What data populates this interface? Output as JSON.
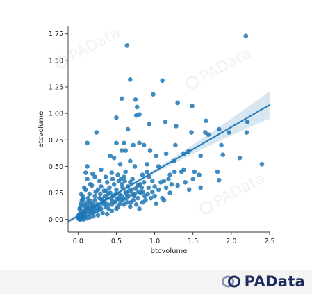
{
  "chart_data": {
    "type": "scatter",
    "xlabel": "btcvolume",
    "ylabel": "etcvolume",
    "xlim": [
      -0.13,
      2.5
    ],
    "ylim": [
      -0.12,
      1.82
    ],
    "xticks": [
      "0.0",
      "0.5",
      "1.0",
      "1.5",
      "2.0",
      "2.5"
    ],
    "yticks": [
      "0.00",
      "0.25",
      "0.50",
      "0.75",
      "1.00",
      "1.25",
      "1.50",
      "1.75"
    ],
    "grid": false,
    "legend": "none",
    "point_color": "#1f77b4",
    "regression": {
      "x": [
        -0.13,
        2.5
      ],
      "y": [
        -0.02,
        1.08
      ],
      "ci_color": "#1f77b4"
    },
    "points": [
      [
        2.19,
        1.73
      ],
      [
        0.64,
        1.64
      ],
      [
        0.68,
        1.32
      ],
      [
        1.1,
        1.31
      ],
      [
        0.57,
        1.14
      ],
      [
        0.98,
        1.18
      ],
      [
        0.75,
        1.13
      ],
      [
        1.3,
        1.1
      ],
      [
        1.49,
        1.07
      ],
      [
        0.77,
        1.06
      ],
      [
        0.8,
        0.99
      ],
      [
        0.76,
        0.98
      ],
      [
        0.5,
        0.96
      ],
      [
        0.65,
        0.85
      ],
      [
        0.93,
        0.9
      ],
      [
        1.14,
        0.92
      ],
      [
        1.28,
        0.88
      ],
      [
        1.48,
        0.82
      ],
      [
        1.67,
        0.93
      ],
      [
        1.66,
        0.82
      ],
      [
        1.7,
        0.8
      ],
      [
        1.84,
        0.85
      ],
      [
        1.97,
        0.82
      ],
      [
        2.21,
        0.92
      ],
      [
        2.2,
        0.82
      ],
      [
        0.12,
        0.72
      ],
      [
        0.24,
        0.82
      ],
      [
        0.5,
        0.72
      ],
      [
        0.57,
        0.65
      ],
      [
        0.6,
        0.72
      ],
      [
        0.62,
        0.65
      ],
      [
        0.72,
        0.7
      ],
      [
        0.8,
        0.72
      ],
      [
        0.86,
        0.7
      ],
      [
        0.94,
        0.65
      ],
      [
        1.02,
        0.6
      ],
      [
        1.15,
        0.62
      ],
      [
        1.27,
        0.7
      ],
      [
        1.38,
        0.62
      ],
      [
        1.44,
        0.64
      ],
      [
        1.6,
        0.6
      ],
      [
        1.87,
        0.7
      ],
      [
        1.89,
        0.61
      ],
      [
        2.11,
        0.58
      ],
      [
        2.4,
        0.52
      ],
      [
        1.82,
        0.45
      ],
      [
        1.84,
        0.37
      ],
      [
        1.58,
        0.42
      ],
      [
        1.52,
        0.45
      ],
      [
        1.38,
        0.47
      ],
      [
        1.25,
        0.55
      ],
      [
        0.1,
        0.44
      ],
      [
        0.12,
        0.5
      ],
      [
        0.19,
        0.43
      ],
      [
        0.3,
        0.47
      ],
      [
        0.42,
        0.6
      ],
      [
        0.47,
        0.58
      ],
      [
        0.55,
        0.52
      ],
      [
        0.68,
        0.55
      ],
      [
        0.74,
        0.5
      ],
      [
        0.9,
        0.52
      ],
      [
        1.05,
        0.5
      ],
      [
        1.2,
        0.42
      ],
      [
        1.26,
        0.45
      ],
      [
        1.4,
        0.35
      ],
      [
        1.5,
        0.38
      ],
      [
        1.6,
        0.3
      ],
      [
        1.45,
        0.28
      ],
      [
        1.3,
        0.32
      ],
      [
        1.2,
        0.25
      ],
      [
        1.1,
        0.2
      ],
      [
        1.0,
        0.22
      ],
      [
        0.92,
        0.3
      ],
      [
        0.85,
        0.26
      ],
      [
        0.78,
        0.32
      ],
      [
        0.68,
        0.35
      ],
      [
        0.6,
        0.4
      ],
      [
        0.52,
        0.42
      ],
      [
        0.45,
        0.38
      ],
      [
        0.38,
        0.35
      ],
      [
        0.3,
        0.31
      ],
      [
        0.23,
        0.26
      ],
      [
        0.18,
        0.32
      ],
      [
        0.15,
        0.24
      ],
      [
        0.1,
        0.28
      ],
      [
        0.06,
        0.22
      ],
      [
        0.05,
        0.18
      ],
      [
        0.08,
        0.14
      ],
      [
        0.12,
        0.16
      ],
      [
        0.03,
        0.12
      ],
      [
        0.04,
        0.08
      ],
      [
        0.02,
        0.05
      ],
      [
        0.01,
        0.02
      ],
      [
        0.03,
        0.03
      ],
      [
        0.06,
        0.06
      ],
      [
        0.08,
        0.04
      ],
      [
        0.1,
        0.08
      ],
      [
        0.14,
        0.1
      ],
      [
        0.16,
        0.13
      ],
      [
        0.2,
        0.12
      ],
      [
        0.22,
        0.18
      ],
      [
        0.25,
        0.14
      ],
      [
        0.28,
        0.2
      ],
      [
        0.32,
        0.17
      ],
      [
        0.35,
        0.22
      ],
      [
        0.38,
        0.2
      ],
      [
        0.42,
        0.25
      ],
      [
        0.46,
        0.22
      ],
      [
        0.5,
        0.28
      ],
      [
        0.54,
        0.24
      ],
      [
        0.58,
        0.3
      ],
      [
        0.62,
        0.26
      ],
      [
        0.66,
        0.22
      ],
      [
        0.7,
        0.28
      ],
      [
        0.74,
        0.24
      ],
      [
        0.78,
        0.2
      ],
      [
        0.82,
        0.25
      ],
      [
        0.88,
        0.18
      ],
      [
        0.95,
        0.2
      ],
      [
        1.02,
        0.15
      ],
      [
        1.12,
        0.18
      ],
      [
        0.18,
        0.06
      ],
      [
        0.24,
        0.08
      ],
      [
        0.3,
        0.1
      ],
      [
        0.36,
        0.12
      ],
      [
        0.4,
        0.1
      ],
      [
        0.44,
        0.14
      ],
      [
        0.48,
        0.16
      ],
      [
        0.52,
        0.12
      ],
      [
        0.56,
        0.18
      ],
      [
        0.6,
        0.14
      ],
      [
        0.64,
        0.16
      ],
      [
        0.68,
        0.12
      ],
      [
        0.72,
        0.18
      ],
      [
        0.76,
        0.14
      ],
      [
        0.8,
        0.1
      ],
      [
        0.84,
        0.16
      ],
      [
        0.15,
        0.02
      ],
      [
        0.2,
        0.03
      ],
      [
        0.26,
        0.04
      ],
      [
        0.32,
        0.06
      ],
      [
        0.38,
        0.05
      ],
      [
        0.44,
        0.08
      ],
      [
        0.5,
        0.1
      ],
      [
        0.11,
        0.01
      ],
      [
        0.07,
        0.0
      ],
      [
        0.05,
        0.01
      ],
      [
        0.09,
        0.03
      ],
      [
        0.13,
        0.05
      ],
      [
        0.17,
        0.09
      ],
      [
        0.21,
        0.07
      ],
      [
        0.27,
        0.09
      ],
      [
        0.33,
        0.15
      ],
      [
        0.37,
        0.27
      ],
      [
        0.41,
        0.3
      ],
      [
        0.47,
        0.33
      ],
      [
        0.53,
        0.36
      ],
      [
        0.57,
        0.33
      ],
      [
        0.61,
        0.36
      ],
      [
        0.65,
        0.31
      ],
      [
        0.71,
        0.38
      ],
      [
        0.02,
        0.1
      ],
      [
        0.04,
        0.15
      ],
      [
        0.07,
        0.19
      ],
      [
        0.09,
        0.11
      ],
      [
        0.11,
        0.13
      ],
      [
        0.13,
        0.2
      ],
      [
        0.16,
        0.17
      ],
      [
        0.19,
        0.15
      ],
      [
        0.22,
        0.22
      ],
      [
        0.26,
        0.28
      ],
      [
        0.29,
        0.24
      ],
      [
        0.34,
        0.27
      ],
      [
        0.39,
        0.24
      ],
      [
        0.43,
        0.2
      ],
      [
        0.49,
        0.24
      ],
      [
        0.53,
        0.2
      ],
      [
        0.57,
        0.22
      ],
      [
        0.63,
        0.2
      ],
      [
        0.69,
        0.16
      ],
      [
        0.73,
        0.22
      ],
      [
        0.79,
        0.26
      ],
      [
        0.83,
        0.3
      ],
      [
        0.87,
        0.22
      ],
      [
        0.91,
        0.24
      ],
      [
        0.97,
        0.26
      ],
      [
        1.05,
        0.28
      ],
      [
        1.08,
        0.35
      ],
      [
        1.15,
        0.3
      ],
      [
        1.18,
        0.38
      ],
      [
        1.22,
        0.33
      ],
      [
        0.02,
        0.0
      ],
      [
        0.0,
        0.01
      ],
      [
        0.03,
        0.0
      ],
      [
        0.06,
        0.02
      ],
      [
        0.01,
        0.04
      ],
      [
        0.04,
        0.03
      ],
      [
        0.08,
        0.07
      ],
      [
        0.12,
        0.11
      ],
      [
        0.16,
        0.07
      ],
      [
        0.2,
        0.1
      ],
      [
        0.24,
        0.11
      ],
      [
        0.28,
        0.13
      ],
      [
        0.31,
        0.19
      ],
      [
        0.35,
        0.16
      ],
      [
        0.39,
        0.14
      ],
      [
        0.45,
        0.17
      ],
      [
        0.51,
        0.19
      ],
      [
        0.55,
        0.15
      ],
      [
        0.59,
        0.19
      ],
      [
        0.63,
        0.24
      ],
      [
        0.67,
        0.27
      ],
      [
        0.71,
        0.24
      ],
      [
        0.75,
        0.29
      ],
      [
        0.81,
        0.33
      ],
      [
        0.86,
        0.35
      ],
      [
        0.93,
        0.4
      ],
      [
        0.97,
        0.36
      ],
      [
        1.0,
        0.31
      ],
      [
        0.62,
        0.45
      ],
      [
        0.56,
        0.38
      ],
      [
        0.44,
        0.44
      ],
      [
        0.36,
        0.4
      ],
      [
        0.28,
        0.36
      ],
      [
        0.22,
        0.4
      ],
      [
        0.16,
        0.33
      ],
      [
        0.12,
        0.38
      ],
      [
        0.08,
        0.3
      ],
      [
        0.04,
        0.24
      ],
      [
        1.35,
        0.45
      ],
      [
        1.12,
        0.36
      ],
      [
        0.9,
        0.45
      ],
      [
        0.84,
        0.42
      ]
    ]
  },
  "watermark": {
    "text": "PAData"
  },
  "brand": {
    "name": "PAData"
  }
}
